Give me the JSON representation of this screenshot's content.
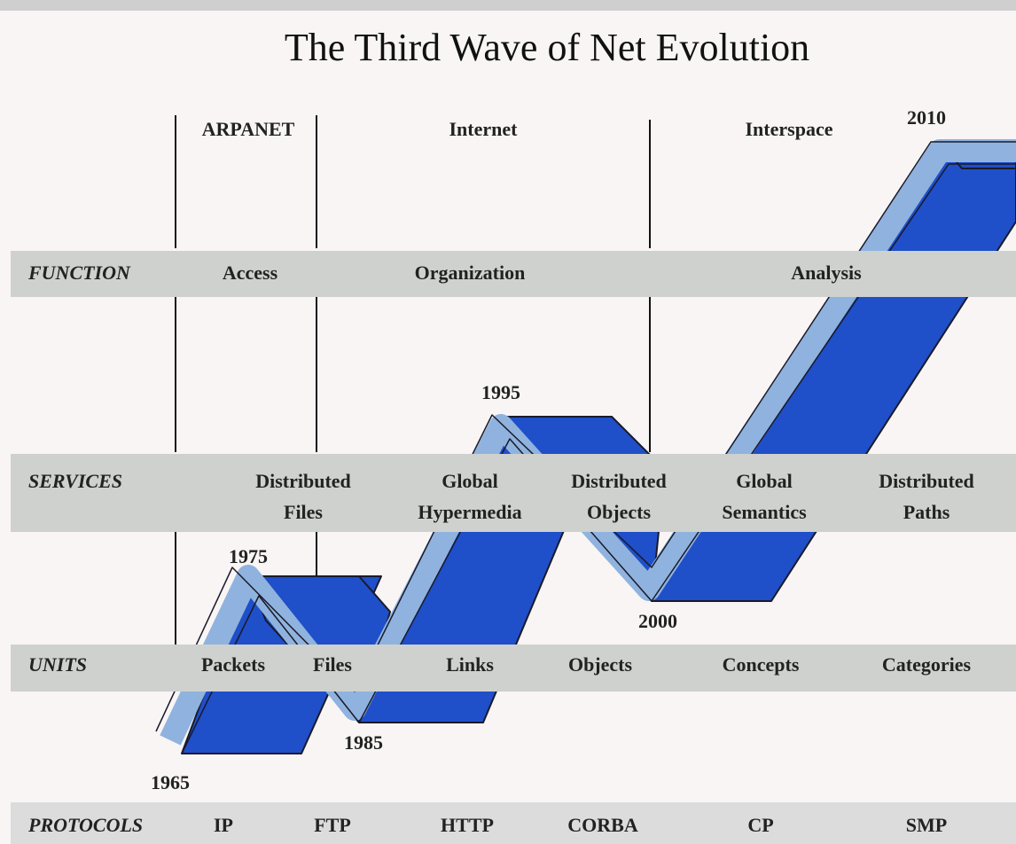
{
  "title": "The Third Wave of Net Evolution",
  "eras": [
    "ARPANET",
    "Internet",
    "Interspace"
  ],
  "years": [
    "1965",
    "1975",
    "1985",
    "1995",
    "2000",
    "2010"
  ],
  "rows": [
    {
      "label": "FUNCTION",
      "items": [
        [
          "Access"
        ],
        [
          "Organization"
        ],
        [
          "Analysis"
        ]
      ]
    },
    {
      "label": "SERVICES",
      "items": [
        [
          "Distributed",
          "Files"
        ],
        [
          "Global",
          "Hypermedia"
        ],
        [
          "Distributed",
          "Objects"
        ],
        [
          "Global",
          "Semantics"
        ],
        [
          "Distributed",
          "Paths"
        ]
      ]
    },
    {
      "label": "UNITS",
      "items": [
        [
          "Packets"
        ],
        [
          "Files"
        ],
        [
          "Links"
        ],
        [
          "Objects"
        ],
        [
          "Concepts"
        ],
        [
          "Categories"
        ]
      ]
    },
    {
      "label": "PROTOCOLS",
      "items": [
        [
          "IP"
        ],
        [
          "FTP"
        ],
        [
          "HTTP"
        ],
        [
          "CORBA"
        ],
        [
          "CP"
        ],
        [
          "SMP"
        ]
      ]
    }
  ]
}
